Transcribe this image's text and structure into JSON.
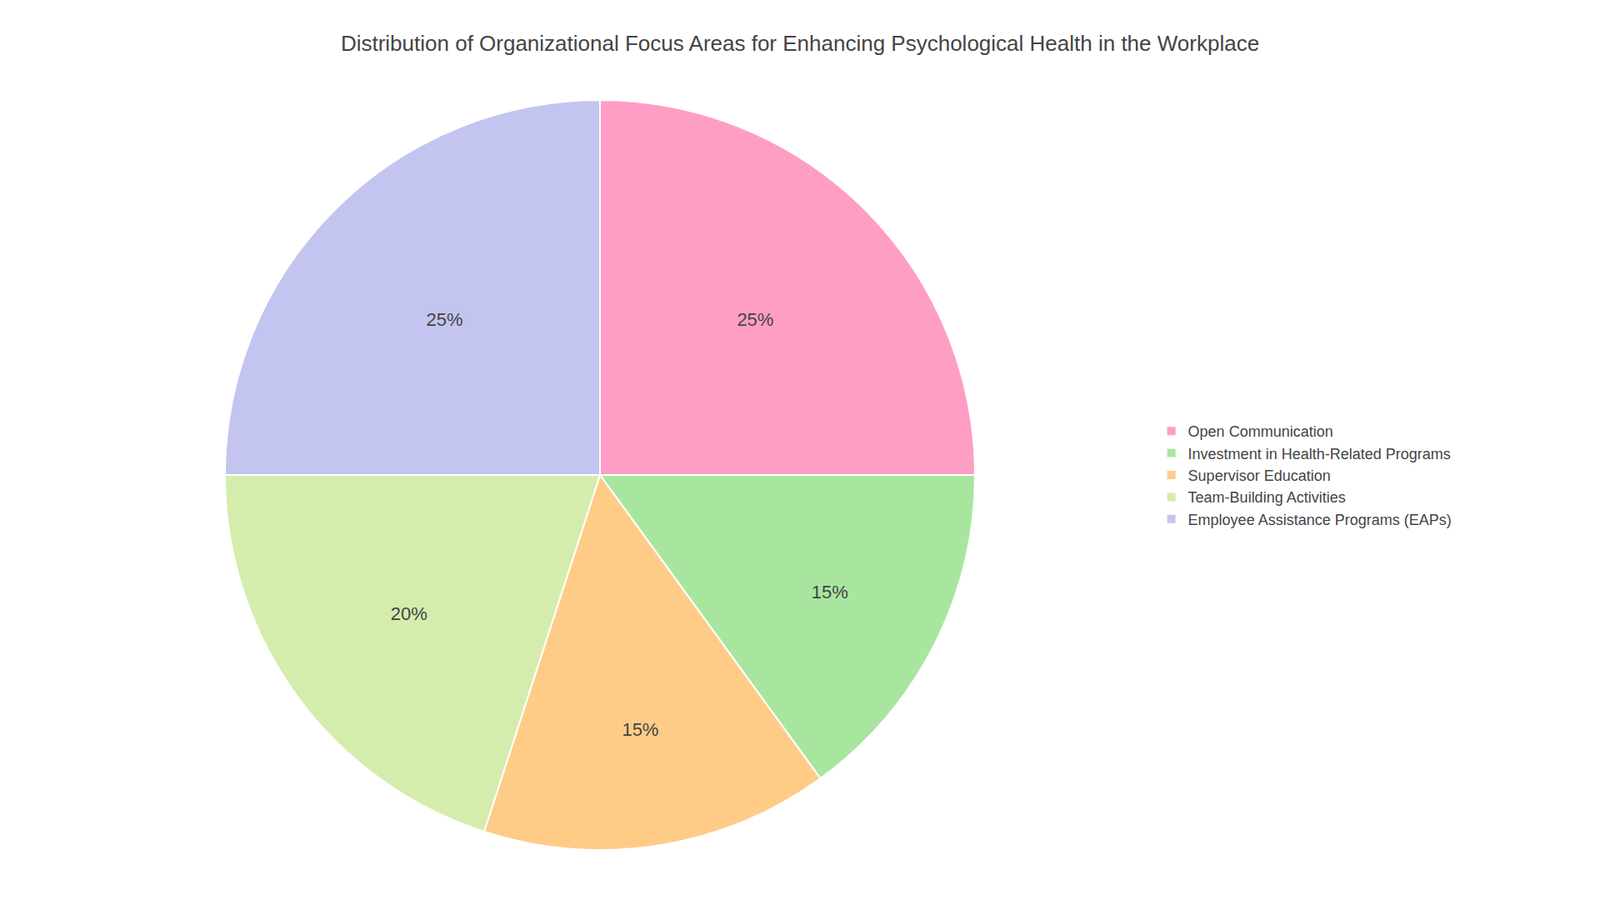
{
  "chart_data": {
    "type": "pie",
    "title": "Distribution of Organizational Focus Areas for Enhancing Psychological Health in the Workplace",
    "categories": [
      "Open Communication",
      "Investment in Health-Related Programs",
      "Supervisor Education",
      "Team-Building Activities",
      "Employee Assistance Programs (EAPs)"
    ],
    "values": [
      25,
      15,
      15,
      20,
      25
    ],
    "value_labels": [
      "25%",
      "15%",
      "15%",
      "20%",
      "25%"
    ],
    "colors": [
      "#FF9EC4",
      "#A8E6A0",
      "#FFCC88",
      "#D4EDAC",
      "#C4C4F0"
    ],
    "data_labels": true,
    "legend": "right"
  }
}
